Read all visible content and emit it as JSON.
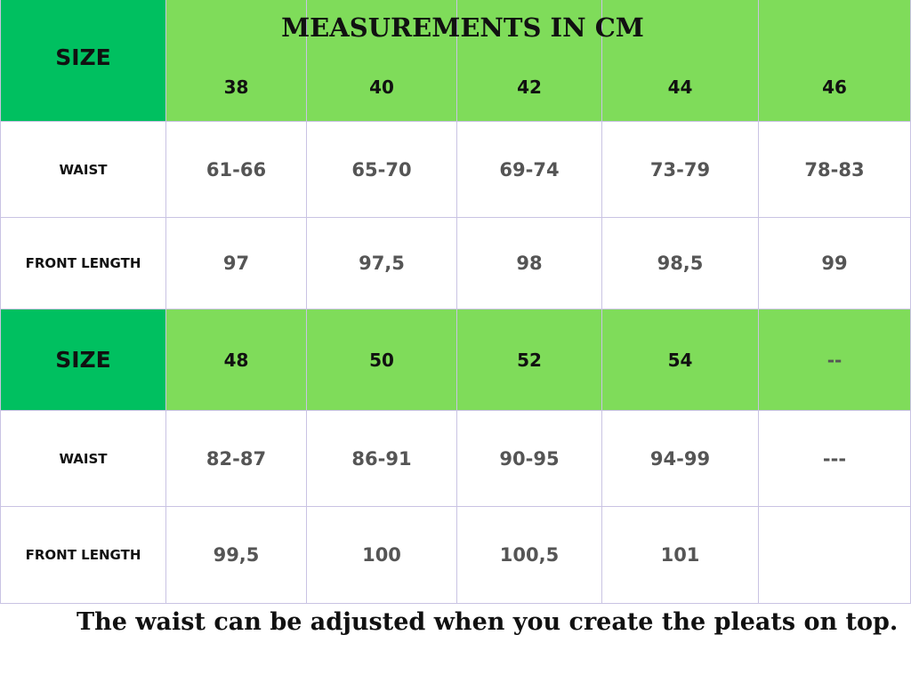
{
  "header": {
    "title": "MEASUREMENTS IN CM"
  },
  "tables": [
    {
      "size_label": "SIZE",
      "sizes": [
        "38",
        "40",
        "42",
        "44",
        "46"
      ],
      "rows": [
        {
          "label": "WAIST",
          "values": [
            "61-66",
            "65-70",
            "69-74",
            "73-79",
            "78-83"
          ]
        },
        {
          "label": "FRONT LENGTH",
          "values": [
            "97",
            "97,5",
            "98",
            "98,5",
            "99"
          ]
        }
      ]
    },
    {
      "size_label": "SIZE",
      "sizes": [
        "48",
        "50",
        "52",
        "54",
        "--"
      ],
      "rows": [
        {
          "label": "WAIST",
          "values": [
            "82-87",
            "86-91",
            "90-95",
            "94-99",
            "---"
          ]
        },
        {
          "label": "FRONT LENGTH",
          "values": [
            "99,5",
            "100",
            "100,5",
            "101"
          ]
        }
      ]
    }
  ],
  "footer": {
    "note": "The waist can be adjusted when you create the pleats on top."
  }
}
